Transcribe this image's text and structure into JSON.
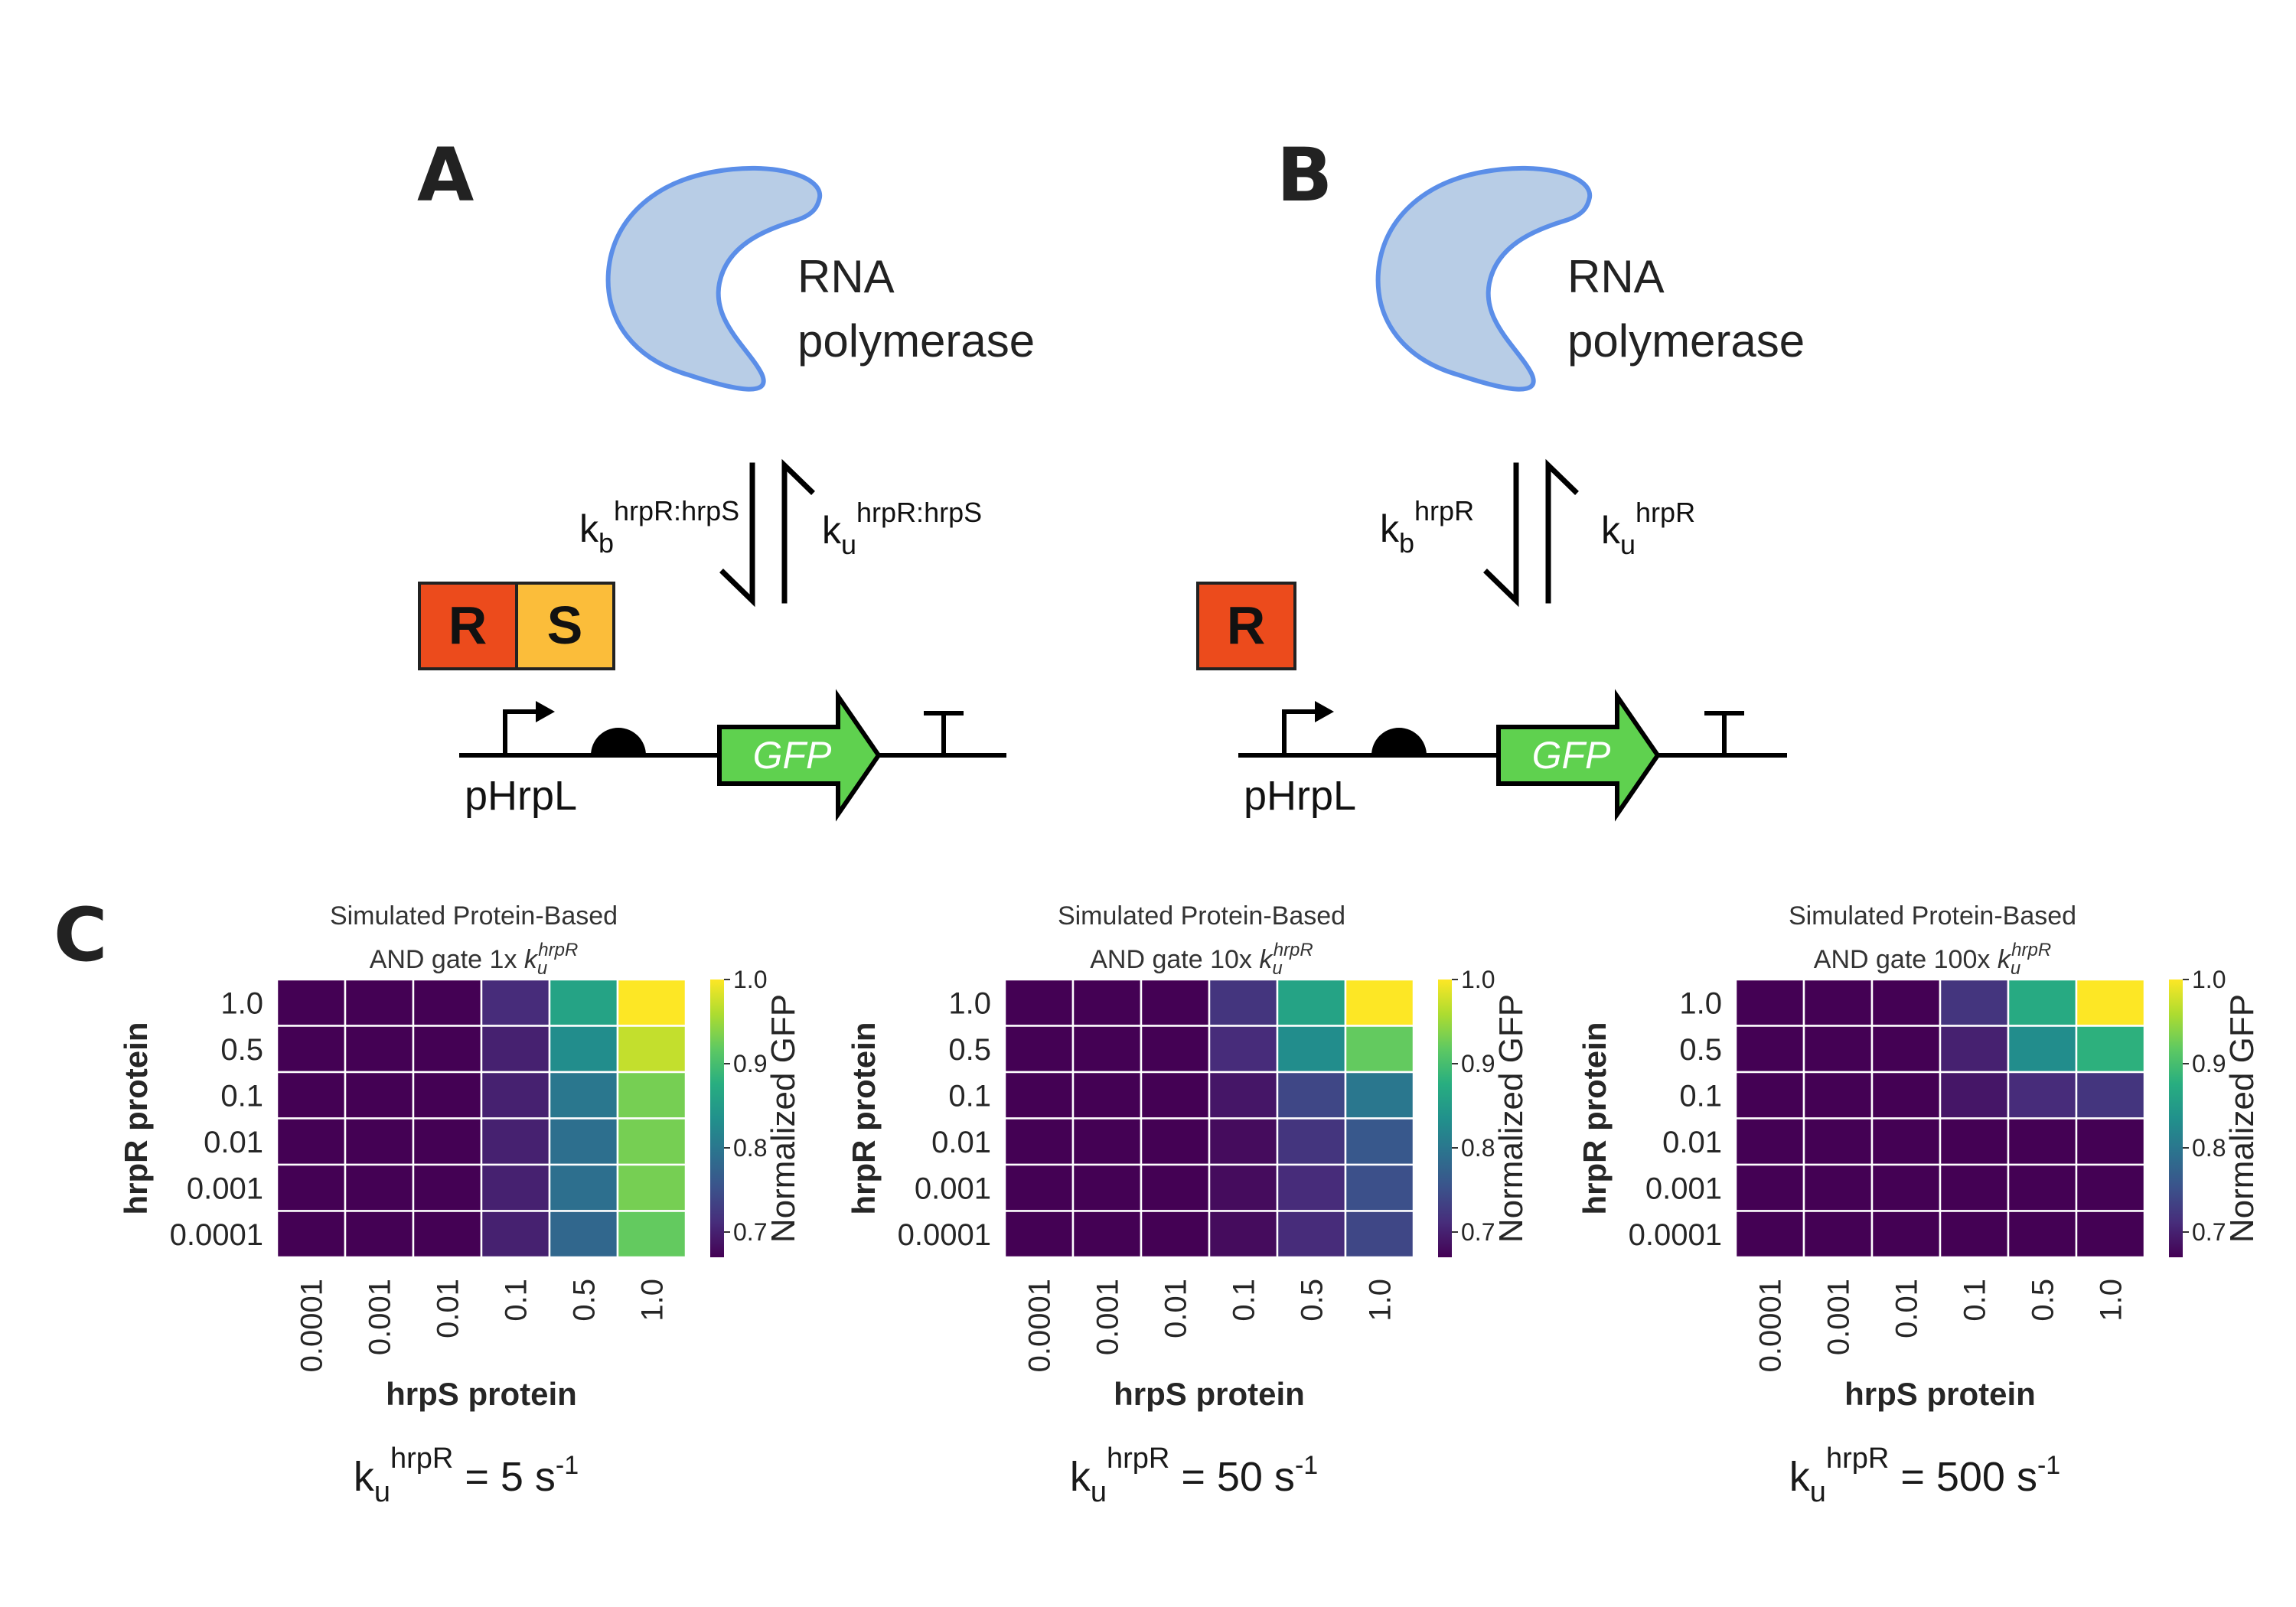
{
  "colors": {
    "polymerase_fill": "#b8cde6",
    "polymerase_stroke": "#5b8ee8",
    "hrpR_box": "#ec4b1c",
    "hrpS_box": "#fbbd3a",
    "gfp_arrow": "#5fd14f"
  },
  "icons": [
    "promoter-arrow-icon",
    "rbs-icon",
    "terminator-icon",
    "gfp-cds-arrow-icon",
    "equilibrium-arrows-icon",
    "rna-polymerase-icon"
  ],
  "panelA": {
    "letter": "A",
    "polymerase_line1": "RNA",
    "polymerase_line2": "polymerase",
    "kb": {
      "base": "k",
      "sub": "b",
      "sup": "hrpR:hrpS"
    },
    "ku": {
      "base": "k",
      "sub": "u",
      "sup": "hrpR:hrpS"
    },
    "box_r": "R",
    "box_s": "S",
    "promoter": "pHrpL",
    "gene": "GFP"
  },
  "panelB": {
    "letter": "B",
    "polymerase_line1": "RNA",
    "polymerase_line2": "polymerase",
    "kb": {
      "base": "k",
      "sub": "b",
      "sup": "hrpR"
    },
    "ku": {
      "base": "k",
      "sub": "u",
      "sup": "hrpR"
    },
    "box_r": "R",
    "promoter": "pHrpL",
    "gene": "GFP"
  },
  "panelC": {
    "letter": "C",
    "colormap": "viridis",
    "heatmaps": [
      {
        "title_line1": "Simulated Protein-Based",
        "title_line2_prefix": "AND gate 1x ",
        "title_k": "k",
        "title_k_sub": "u",
        "title_k_sup": "hrpR",
        "rate": {
          "base": "k",
          "sub": "u",
          "sup": "hrpR",
          "value": " = 5 s",
          "unit_sup": "-1"
        }
      },
      {
        "title_line1": "Simulated Protein-Based",
        "title_line2_prefix": "AND gate 10x ",
        "title_k": "k",
        "title_k_sub": "u",
        "title_k_sup": "hrpR",
        "rate": {
          "base": "k",
          "sub": "u",
          "sup": "hrpR",
          "value": " = 50 s",
          "unit_sup": "-1"
        }
      },
      {
        "title_line1": "Simulated Protein-Based",
        "title_line2_prefix": "AND gate 100x ",
        "title_k": "k",
        "title_k_sub": "u",
        "title_k_sup": "hrpR",
        "rate": {
          "base": "k",
          "sub": "u",
          "sup": "hrpR",
          "value": " = 500 s",
          "unit_sup": "-1"
        }
      }
    ]
  },
  "chart_data": [
    {
      "type": "heatmap",
      "title": "Simulated Protein-Based AND gate 1x k_u^hrpR",
      "xlabel": "hrpS protein",
      "ylabel": "hrpR protein",
      "x_ticks": [
        "0.0001",
        "0.001",
        "0.01",
        "0.1",
        "0.5",
        "1.0"
      ],
      "y_ticks": [
        "1.0",
        "0.5",
        "0.1",
        "0.01",
        "0.001",
        "0.0001"
      ],
      "colorbar_label": "Normalized GFP",
      "colorbar_ticks": [
        "1.0",
        "0.9",
        "0.8",
        "0.7"
      ],
      "vmin": 0.67,
      "vmax": 1.0,
      "values": [
        [
          0.67,
          0.67,
          0.67,
          0.71,
          0.86,
          1.0
        ],
        [
          0.67,
          0.67,
          0.67,
          0.7,
          0.83,
          0.97
        ],
        [
          0.67,
          0.67,
          0.67,
          0.7,
          0.8,
          0.93
        ],
        [
          0.67,
          0.67,
          0.67,
          0.7,
          0.79,
          0.93
        ],
        [
          0.67,
          0.67,
          0.67,
          0.7,
          0.79,
          0.93
        ],
        [
          0.67,
          0.67,
          0.67,
          0.7,
          0.78,
          0.92
        ]
      ]
    },
    {
      "type": "heatmap",
      "title": "Simulated Protein-Based AND gate 10x k_u^hrpR",
      "xlabel": "hrpS protein",
      "ylabel": "hrpR protein",
      "x_ticks": [
        "0.0001",
        "0.001",
        "0.01",
        "0.1",
        "0.5",
        "1.0"
      ],
      "y_ticks": [
        "1.0",
        "0.5",
        "0.1",
        "0.01",
        "0.001",
        "0.0001"
      ],
      "colorbar_label": "Normalized GFP",
      "colorbar_ticks": [
        "1.0",
        "0.9",
        "0.8",
        "0.7"
      ],
      "vmin": 0.67,
      "vmax": 1.0,
      "values": [
        [
          0.67,
          0.67,
          0.67,
          0.72,
          0.86,
          1.0
        ],
        [
          0.67,
          0.67,
          0.67,
          0.71,
          0.83,
          0.92
        ],
        [
          0.67,
          0.67,
          0.67,
          0.69,
          0.74,
          0.8
        ],
        [
          0.67,
          0.67,
          0.67,
          0.68,
          0.72,
          0.76
        ],
        [
          0.67,
          0.67,
          0.67,
          0.68,
          0.71,
          0.75
        ],
        [
          0.67,
          0.67,
          0.67,
          0.68,
          0.71,
          0.74
        ]
      ]
    },
    {
      "type": "heatmap",
      "title": "Simulated Protein-Based AND gate 100x k_u^hrpR",
      "xlabel": "hrpS protein",
      "ylabel": "hrpR protein",
      "x_ticks": [
        "0.0001",
        "0.001",
        "0.01",
        "0.1",
        "0.5",
        "1.0"
      ],
      "y_ticks": [
        "1.0",
        "0.5",
        "0.1",
        "0.01",
        "0.001",
        "0.0001"
      ],
      "colorbar_label": "Normalized GFP",
      "colorbar_ticks": [
        "1.0",
        "0.9",
        "0.8",
        "0.7"
      ],
      "vmin": 0.67,
      "vmax": 1.0,
      "values": [
        [
          0.67,
          0.67,
          0.67,
          0.72,
          0.87,
          1.0
        ],
        [
          0.67,
          0.67,
          0.67,
          0.7,
          0.83,
          0.88
        ],
        [
          0.67,
          0.67,
          0.67,
          0.69,
          0.71,
          0.72
        ],
        [
          0.67,
          0.67,
          0.67,
          0.67,
          0.67,
          0.67
        ],
        [
          0.67,
          0.67,
          0.67,
          0.67,
          0.67,
          0.67
        ],
        [
          0.67,
          0.67,
          0.67,
          0.67,
          0.67,
          0.67
        ]
      ]
    }
  ]
}
